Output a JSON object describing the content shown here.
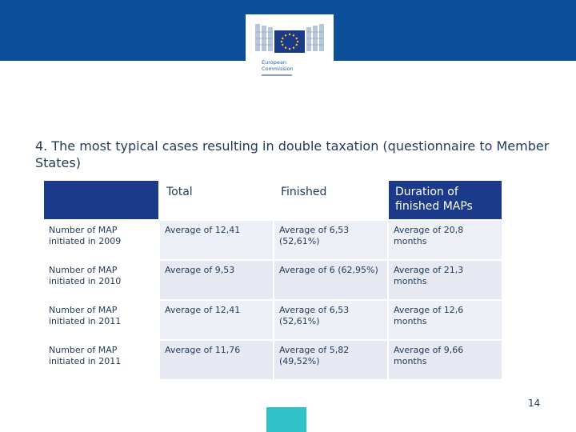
{
  "logo": {
    "line1": "European",
    "line2": "Commission",
    "icon": "european-commission-logo",
    "flag_color": "#1c3a8a",
    "star_color": "#ffd200"
  },
  "title": "4. The most typical cases resulting in double taxation (questionnaire to Member States)",
  "table": {
    "headers": [
      "",
      "Total",
      "Finished",
      "Duration of finished MAPs"
    ],
    "rows": [
      [
        "Number of MAP initiated in 2009",
        "Average of 12,41",
        "Average of 6,53 (52,61%)",
        "Average of 20,8 months"
      ],
      [
        "Number of MAP initiated in 2010",
        "Average of 9,53",
        "Average of 6 (62,95%)",
        "Average of 21,3 months"
      ],
      [
        "Number of MAP initiated in 2011",
        "Average of 12,41",
        "Average of 6,53 (52,61%)",
        "Average of 12,6 months"
      ],
      [
        "Number of MAP initiated in 2011",
        "Average of 11,76",
        "Average of 5,82 (49,52%)",
        "Average of 9,66 months"
      ]
    ]
  },
  "page_number": "14",
  "colors": {
    "top_band": "#0b4f9a",
    "header_blue": "#1c3a8a",
    "accent_teal": "#2fc2c8",
    "text": "#1e3a5c"
  }
}
